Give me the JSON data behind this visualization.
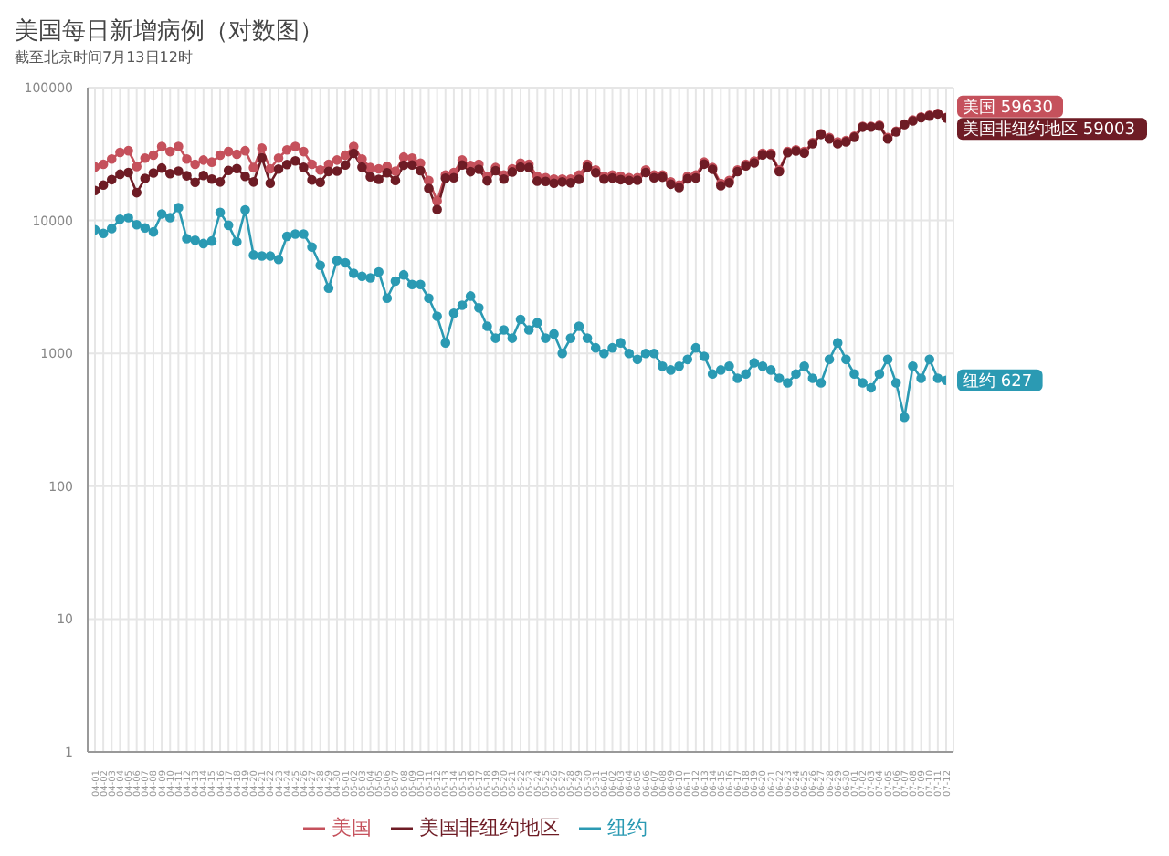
{
  "chart_data": {
    "type": "line",
    "title": "美国每日新增病例（对数图）",
    "subtitle": "截至北京时间7月13日12时",
    "categories": [
      "04-01",
      "04-02",
      "04-03",
      "04-04",
      "04-05",
      "04-06",
      "04-07",
      "04-08",
      "04-09",
      "04-10",
      "04-11",
      "04-12",
      "04-13",
      "04-14",
      "04-15",
      "04-16",
      "04-17",
      "04-18",
      "04-19",
      "04-20",
      "04-21",
      "04-22",
      "04-23",
      "04-24",
      "04-25",
      "04-26",
      "04-27",
      "04-28",
      "04-29",
      "04-30",
      "05-01",
      "05-02",
      "05-03",
      "05-04",
      "05-05",
      "05-06",
      "05-07",
      "05-08",
      "05-09",
      "05-10",
      "05-11",
      "05-12",
      "05-13",
      "05-14",
      "05-15",
      "05-16",
      "05-17",
      "05-18",
      "05-19",
      "05-20",
      "05-21",
      "05-22",
      "05-23",
      "05-24",
      "05-25",
      "05-26",
      "05-27",
      "05-28",
      "05-29",
      "05-30",
      "05-31",
      "06-01",
      "06-02",
      "06-03",
      "06-04",
      "06-05",
      "06-06",
      "06-07",
      "06-08",
      "06-09",
      "06-10",
      "06-11",
      "06-12",
      "06-13",
      "06-14",
      "06-15",
      "06-16",
      "06-17",
      "06-18",
      "06-19",
      "06-20",
      "06-21",
      "06-22",
      "06-23",
      "06-24",
      "06-25",
      "06-26",
      "06-27",
      "06-28",
      "06-29",
      "06-30",
      "07-01",
      "07-02",
      "07-03",
      "07-04",
      "07-05",
      "07-06",
      "07-07",
      "07-08",
      "07-09",
      "07-10",
      "07-11",
      "07-12"
    ],
    "series": [
      {
        "name": "美国",
        "color": "#c5515c",
        "values": [
          25300,
          26500,
          29000,
          32500,
          33500,
          25500,
          29500,
          31000,
          36000,
          33000,
          36000,
          29000,
          26500,
          28500,
          27500,
          31000,
          33000,
          31500,
          33500,
          25000,
          35000,
          24500,
          29500,
          34000,
          36000,
          33000,
          26500,
          24000,
          26500,
          28500,
          31000,
          36000,
          29000,
          25000,
          24500,
          25500,
          23500,
          30000,
          29500,
          27000,
          20000,
          14000,
          22000,
          23000,
          28500,
          26000,
          26500,
          21500,
          25000,
          22000,
          24500,
          27000,
          26500,
          21500,
          21000,
          20500,
          20500,
          20500,
          22000,
          26500,
          24000,
          21500,
          22000,
          21500,
          21000,
          21000,
          24000,
          22000,
          22000,
          19500,
          18500,
          21500,
          22000,
          27500,
          25000,
          19000,
          20000,
          24000,
          26500,
          28000,
          32000,
          32000,
          24000,
          33000,
          34000,
          33000,
          38500,
          45000,
          42000,
          39000,
          40000,
          43000,
          51000,
          51000,
          52000,
          42000,
          47000,
          53000,
          57000,
          60000,
          62000,
          64000,
          59630
        ]
      },
      {
        "name": "美国非纽约地区",
        "color": "#6e1c25",
        "values": [
          16800,
          18500,
          20300,
          22300,
          23000,
          16200,
          20700,
          22800,
          24800,
          22500,
          23500,
          21700,
          19400,
          21800,
          20500,
          19500,
          23800,
          24600,
          21500,
          19500,
          29600,
          19100,
          24400,
          26400,
          28100,
          25100,
          20200,
          19400,
          23400,
          23500,
          26200,
          32000,
          25200,
          21300,
          20400,
          22900,
          20000,
          26100,
          26200,
          23700,
          17400,
          12100,
          20800,
          21000,
          26200,
          23300,
          24300,
          19900,
          23700,
          20500,
          23200,
          25200,
          25000,
          19800,
          19700,
          19100,
          19500,
          19200,
          20400,
          25200,
          22900,
          20500,
          20900,
          20300,
          20000,
          20100,
          23000,
          21000,
          21200,
          18750,
          17700,
          20600,
          20900,
          26550,
          24300,
          18250,
          19200,
          23350,
          25800,
          27150,
          31200,
          31250,
          23350,
          32400,
          33300,
          32200,
          37850,
          44400,
          41100,
          37800,
          39100,
          42300,
          50400,
          50450,
          51300,
          41100,
          46400,
          52670,
          56200,
          59350,
          61100,
          63350,
          59003
        ]
      },
      {
        "name": "纽约",
        "color": "#2b9ab3",
        "values": [
          8500,
          8000,
          8700,
          10200,
          10500,
          9300,
          8800,
          8200,
          11200,
          10500,
          12500,
          7300,
          7100,
          6700,
          7000,
          11500,
          9200,
          6900,
          12000,
          5500,
          5400,
          5400,
          5100,
          7600,
          7900,
          7900,
          6300,
          4600,
          3100,
          5000,
          4800,
          4000,
          3800,
          3700,
          4100,
          2600,
          3500,
          3900,
          3300,
          3300,
          2600,
          1900,
          1200,
          2000,
          2300,
          2700,
          2200,
          1600,
          1300,
          1500,
          1300,
          1800,
          1500,
          1700,
          1300,
          1400,
          1000,
          1300,
          1600,
          1300,
          1100,
          1000,
          1100,
          1200,
          1000,
          900,
          1000,
          1000,
          800,
          750,
          800,
          900,
          1100,
          950,
          700,
          750,
          800,
          650,
          700,
          850,
          800,
          750,
          650,
          600,
          700,
          800,
          650,
          600,
          900,
          1200,
          900,
          700,
          600,
          550,
          700,
          900,
          600,
          330,
          800,
          650,
          900,
          650,
          627
        ]
      }
    ],
    "annotations": [
      {
        "text": "美国 59630",
        "x": "07-12",
        "y": 59630
      },
      {
        "text": "美国非纽约地区 59003",
        "x": "07-12",
        "y": 59003
      },
      {
        "text": "纽约 627",
        "x": "07-12",
        "y": 627
      }
    ],
    "log": true,
    "ylim": [
      1,
      100000
    ],
    "yticks": [
      1,
      10,
      100,
      1000,
      10000,
      100000
    ],
    "grid": true,
    "legend": "bottom",
    "marker": "circle",
    "line_style": "solid"
  }
}
